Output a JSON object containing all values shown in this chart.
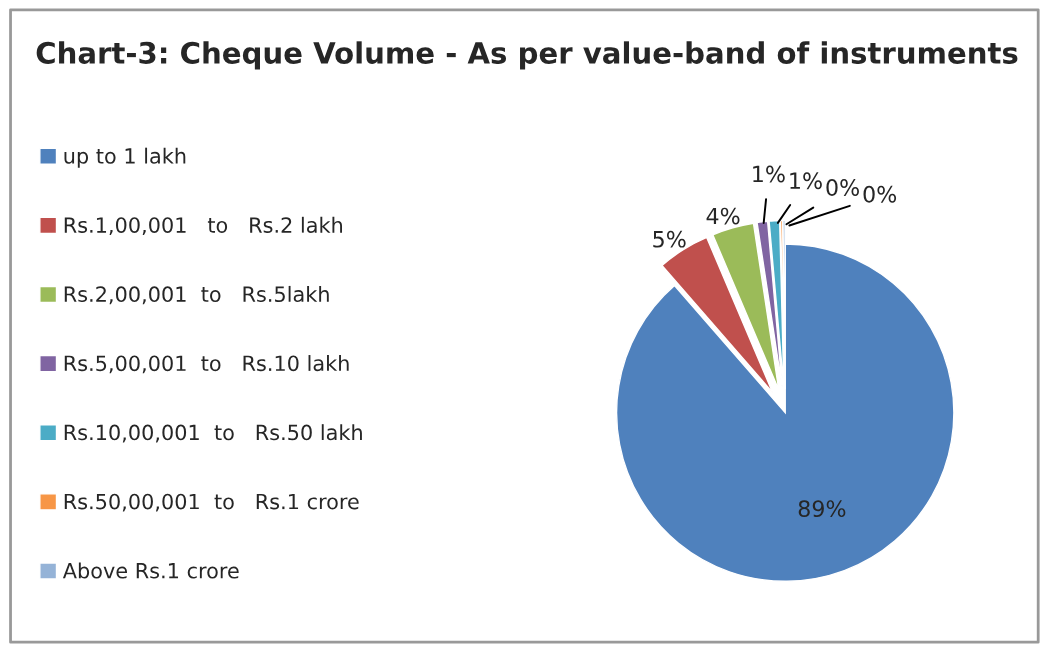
{
  "chart_data": {
    "type": "pie",
    "title": "Chart-3: Cheque Volume - As per value-band of instruments",
    "categories": [
      "up to 1 lakh",
      "Rs.1,00,001   to   Rs.2 lakh",
      "Rs.2,00,001  to   Rs.5lakh",
      "Rs.5,00,001  to   Rs.10 lakh",
      "Rs.10,00,001  to   Rs.50 lakh",
      "Rs.50,00,001  to   Rs.1 crore",
      "Above Rs.1 crore"
    ],
    "values": [
      88.6,
      5,
      4,
      1,
      1,
      0.2,
      0.2
    ],
    "value_labels": [
      "89%",
      "5%",
      "4%",
      "1%",
      "1%",
      "0%",
      "0%"
    ],
    "colors": [
      "#4f81bd",
      "#c0504d",
      "#9bbb59",
      "#8064a2",
      "#4bacc6",
      "#f79646",
      "#95b3d7"
    ],
    "legend": "left"
  }
}
